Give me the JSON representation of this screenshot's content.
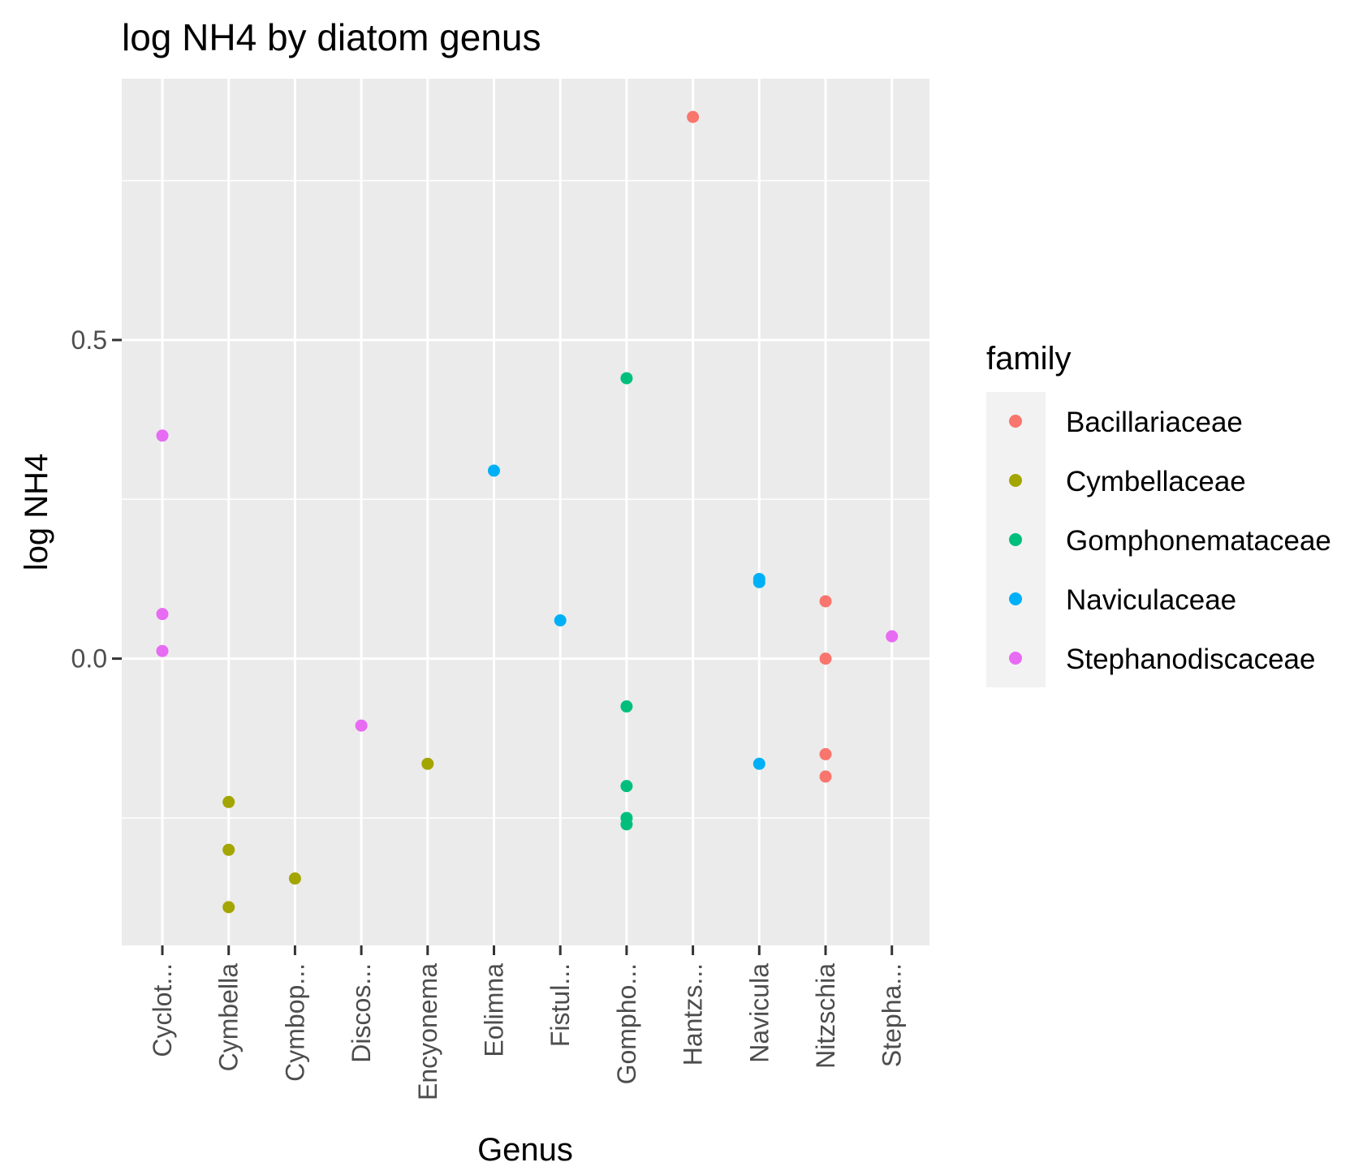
{
  "chart_data": {
    "type": "scatter",
    "title": "log NH4 by diatom genus",
    "xlabel": "Genus",
    "ylabel": "log NH4",
    "categories": [
      "Cyclot...",
      "Cymbella",
      "Cymbop...",
      "Discos...",
      "Encyonema",
      "Eolimna",
      "Fistul...",
      "Gompho...",
      "Hantzs...",
      "Navicula",
      "Nitzschia",
      "Stepha..."
    ],
    "ylim": [
      -0.45,
      0.91
    ],
    "yticks": [
      0.0,
      0.5
    ],
    "ytick_labels": [
      "0.0",
      "0.5"
    ],
    "grid": true,
    "legend": {
      "title": "family",
      "position": "right",
      "entries": [
        {
          "name": "Bacillariaceae",
          "color": "#F8766D"
        },
        {
          "name": "Cymbellaceae",
          "color": "#A3A500"
        },
        {
          "name": "Gomphonemataceae",
          "color": "#00BF7D"
        },
        {
          "name": "Naviculaceae",
          "color": "#00B0F6"
        },
        {
          "name": "Stephanodiscaceae",
          "color": "#E76BF3"
        }
      ]
    },
    "series": [
      {
        "name": "Bacillariaceae",
        "color": "#F8766D",
        "points": [
          {
            "x": "Hantzs...",
            "y": 0.85
          },
          {
            "x": "Nitzschia",
            "y": 0.09
          },
          {
            "x": "Nitzschia",
            "y": 0.0
          },
          {
            "x": "Nitzschia",
            "y": -0.15
          },
          {
            "x": "Nitzschia",
            "y": -0.185
          }
        ]
      },
      {
        "name": "Cymbellaceae",
        "color": "#A3A500",
        "points": [
          {
            "x": "Cymbella",
            "y": -0.225
          },
          {
            "x": "Cymbella",
            "y": -0.3
          },
          {
            "x": "Cymbella",
            "y": -0.39
          },
          {
            "x": "Cymbop...",
            "y": -0.345
          },
          {
            "x": "Encyonema",
            "y": -0.165
          }
        ]
      },
      {
        "name": "Gomphonemataceae",
        "color": "#00BF7D",
        "points": [
          {
            "x": "Gompho...",
            "y": 0.44
          },
          {
            "x": "Gompho...",
            "y": -0.075
          },
          {
            "x": "Gompho...",
            "y": -0.2
          },
          {
            "x": "Gompho...",
            "y": -0.25
          },
          {
            "x": "Gompho...",
            "y": -0.26
          }
        ]
      },
      {
        "name": "Naviculaceae",
        "color": "#00B0F6",
        "points": [
          {
            "x": "Eolimna",
            "y": 0.295
          },
          {
            "x": "Fistul...",
            "y": 0.06
          },
          {
            "x": "Navicula",
            "y": 0.125
          },
          {
            "x": "Navicula",
            "y": 0.12
          },
          {
            "x": "Navicula",
            "y": -0.165
          }
        ]
      },
      {
        "name": "Stephanodiscaceae",
        "color": "#E76BF3",
        "points": [
          {
            "x": "Cyclot...",
            "y": 0.35
          },
          {
            "x": "Cyclot...",
            "y": 0.07
          },
          {
            "x": "Cyclot...",
            "y": 0.012
          },
          {
            "x": "Discos...",
            "y": -0.105
          },
          {
            "x": "Stepha...",
            "y": 0.035
          }
        ]
      }
    ]
  }
}
